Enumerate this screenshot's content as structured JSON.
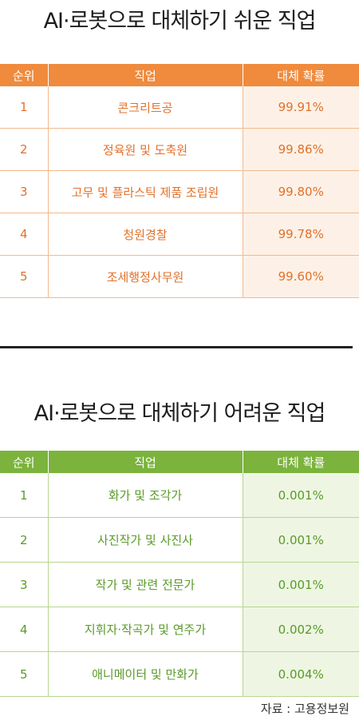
{
  "easy": {
    "title": "AI·로봇으로 대체하기 쉬운 직업",
    "headers": [
      "순위",
      "직업",
      "대체 확률"
    ],
    "rows": [
      {
        "rank": "1",
        "job": "콘크리트공",
        "rate": "99.91%"
      },
      {
        "rank": "2",
        "job": "정육원 및 도축원",
        "rate": "99.86%"
      },
      {
        "rank": "3",
        "job": "고무 및 플라스틱 제품 조립원",
        "rate": "99.80%"
      },
      {
        "rank": "4",
        "job": "청원경찰",
        "rate": "99.78%"
      },
      {
        "rank": "5",
        "job": "조세행정사무원",
        "rate": "99.60%"
      }
    ]
  },
  "hard": {
    "title": "AI·로봇으로 대체하기 어려운 직업",
    "headers": [
      "순위",
      "직업",
      "대체 확률"
    ],
    "rows": [
      {
        "rank": "1",
        "job": "화가 및 조각가",
        "rate": "0.001%"
      },
      {
        "rank": "2",
        "job": "사진작가 및 사진사",
        "rate": "0.001%"
      },
      {
        "rank": "3",
        "job": "작가 및 관련 전문가",
        "rate": "0.001%"
      },
      {
        "rank": "4",
        "job": "지휘자·작곡가 및 연주가",
        "rate": "0.002%"
      },
      {
        "rank": "5",
        "job": "애니메이터 및 만화가",
        "rate": "0.004%"
      }
    ]
  },
  "source": "자료 : 고용정보원"
}
